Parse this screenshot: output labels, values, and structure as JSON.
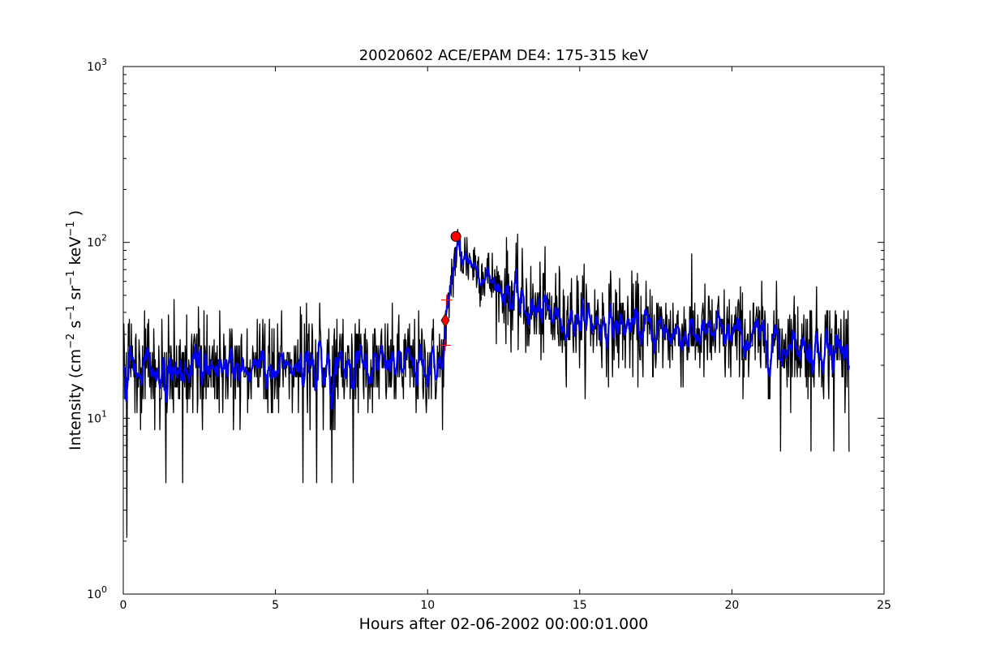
{
  "chart_data": {
    "type": "line",
    "title": "20020602 ACE/EPAM DE4: 175-315 keV",
    "xlabel": "Hours after 02-06-2002 00:00:01.000",
    "ylabel_parts": {
      "prefix": "Intensity (cm",
      "exp1": "−2",
      "s": " s",
      "exp2": "−1",
      "sr": " sr",
      "exp3": "−1",
      "kev": " keV",
      "exp4": "−1",
      "suffix": " )"
    },
    "yscale": "log",
    "xlim": [
      0,
      25
    ],
    "ylim": [
      1,
      1000
    ],
    "x_ticks": [
      {
        "value": 0,
        "label": "0"
      },
      {
        "value": 5,
        "label": "5"
      },
      {
        "value": 10,
        "label": "10"
      },
      {
        "value": 15,
        "label": "15"
      },
      {
        "value": 20,
        "label": "20"
      },
      {
        "value": 25,
        "label": "25"
      }
    ],
    "y_ticks": [
      {
        "value": 1,
        "base": "10",
        "exp": "0"
      },
      {
        "value": 10,
        "base": "10",
        "exp": "1"
      },
      {
        "value": 100,
        "base": "10",
        "exp": "2"
      },
      {
        "value": 1000,
        "base": "10",
        "exp": "3"
      }
    ],
    "grid": false,
    "series": [
      {
        "role": "raw",
        "color": "#000000",
        "x_range": [
          0,
          23.85
        ],
        "profile": [
          {
            "x": 0,
            "y": 19
          },
          {
            "x": 10.5,
            "y": 20
          },
          {
            "x": 10.6,
            "y": 30
          },
          {
            "x": 10.75,
            "y": 58
          },
          {
            "x": 10.95,
            "y": 90
          },
          {
            "x": 11.3,
            "y": 82
          },
          {
            "x": 12.2,
            "y": 58
          },
          {
            "x": 13.5,
            "y": 40
          },
          {
            "x": 17,
            "y": 32
          },
          {
            "x": 20,
            "y": 29
          },
          {
            "x": 23.85,
            "y": 25
          }
        ],
        "outliers": [
          {
            "x": 0.12,
            "y": 2.1
          },
          {
            "x": 1.4,
            "y": 4.3
          },
          {
            "x": 1.95,
            "y": 4.3
          },
          {
            "x": 5.9,
            "y": 4.3
          },
          {
            "x": 6.35,
            "y": 4.3
          },
          {
            "x": 6.85,
            "y": 4.3
          },
          {
            "x": 7.55,
            "y": 4.3
          },
          {
            "x": 21.6,
            "y": 6.5
          },
          {
            "x": 22.6,
            "y": 6.5
          },
          {
            "x": 23.35,
            "y": 6.5
          }
        ]
      },
      {
        "role": "smoothed",
        "color": "#0000ff",
        "x_range": [
          0,
          23.85
        ]
      }
    ],
    "markers": [
      {
        "kind": "circle",
        "x": 10.93,
        "y": 108,
        "color": "#ff0000"
      },
      {
        "kind": "diamond",
        "x": 10.58,
        "y": 36,
        "color": "#ff0000"
      },
      {
        "kind": "plus",
        "x": 10.63,
        "y": 47,
        "color": "#ff0000"
      },
      {
        "kind": "plus",
        "x": 10.58,
        "y": 26,
        "color": "#ff0000"
      }
    ]
  }
}
